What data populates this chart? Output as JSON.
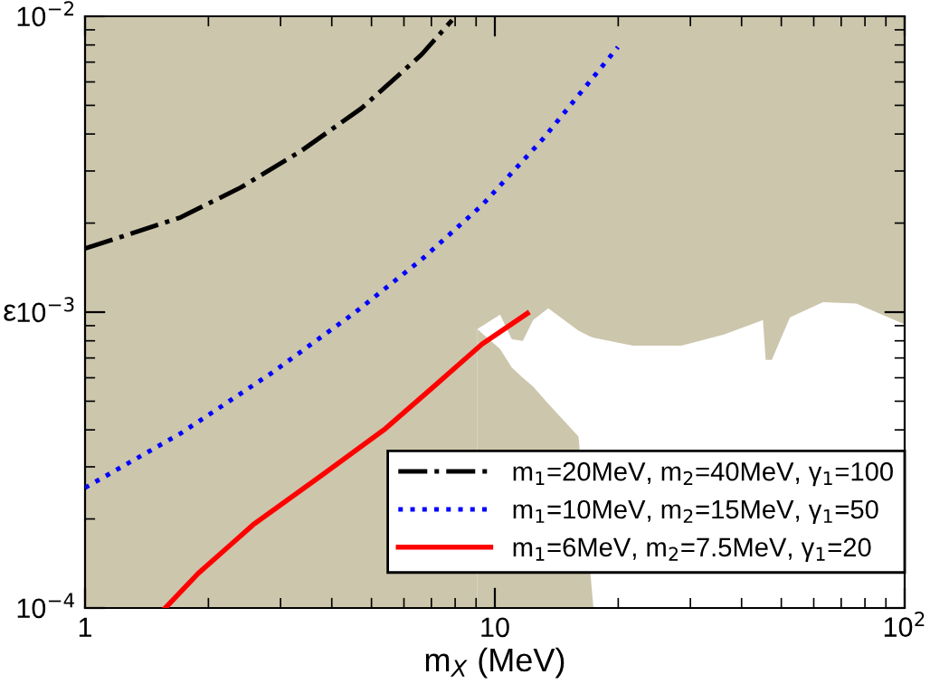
{
  "chart_data": {
    "type": "line",
    "xlabel": "m$_{X}$ (MeV)",
    "ylabel": "ε",
    "log": "xy",
    "xlim": [
      1,
      100
    ],
    "ylim": [
      0.0001,
      0.01
    ],
    "xticks": [
      1,
      10,
      {
        "value": 100,
        "label": "10$^{2}$"
      }
    ],
    "yticks": [
      {
        "value": 0.0001,
        "label": "10$^{−4}$"
      },
      {
        "value": 0.001,
        "label": "10$^{−3}$"
      },
      {
        "value": 0.01,
        "label": "10$^{−2}$"
      }
    ],
    "bands": [
      {
        "axis": "y",
        "from": 0.0001,
        "to": 0.01,
        "color": "#ccc6ac"
      }
    ],
    "grid": false,
    "legend": "bottom right",
    "marker": "none",
    "series": [
      {
        "type": "area",
        "color": "#ffffff",
        "x": [
          9.06,
          10.3,
          11.0,
          11.7,
          12.4,
          13.5,
          16.0,
          17.0,
          17.4,
          21.7,
          28.5,
          36.2,
          45.1,
          45.8,
          47.4,
          52.5,
          63.2,
          76.2,
          100
        ],
        "values": [
          0.000877,
          0.00098,
          0.00081,
          0.0008,
          0.00094,
          0.00103,
          0.000865,
          0.00083,
          0.00082,
          0.00077,
          0.00077,
          0.00084,
          0.00094,
          0.00069,
          0.00069,
          0.00096,
          0.00108,
          0.00107,
          0.00091
        ]
      },
      {
        "type": "area",
        "color": "#ccc6ac",
        "x": [
          9.06,
          10.3,
          11.0,
          11.7,
          12.4,
          13.5,
          16.0,
          17.4
        ],
        "values": [
          0.000877,
          0.00075,
          0.00065,
          0.0006,
          0.00056,
          0.00049,
          0.00038,
          0.0001
        ]
      },
      {
        "name": "m$_{1}$=20MeV, m$_{2}$=40MeV, γ$_{1}$=100",
        "color": "#000000",
        "line_style": "dashdot",
        "x": [
          1,
          1.71,
          2.4,
          3.37,
          4.72,
          6.63,
          7.86
        ],
        "values": [
          0.00164,
          0.00209,
          0.00264,
          0.00351,
          0.00488,
          0.00743,
          0.0097
        ]
      },
      {
        "name": "m$_{1}$=10MeV, m$_{2}$=15MeV, γ$_{1}$=50",
        "color": "#0000ff",
        "line_style": "dotted",
        "x": [
          1,
          1.71,
          2.84,
          4.57,
          6.64,
          9.31,
          13.1,
          19.96
        ],
        "values": [
          0.000255,
          0.000389,
          0.00062,
          0.001,
          0.00151,
          0.0023,
          0.00385,
          0.00787
        ]
      },
      {
        "name": "m$_{1}$=6MeV, m$_{2}$=7.5MeV, γ$_{1}$=20",
        "color": "#ff0000",
        "line_style": "solid",
        "x": [
          1.57,
          1.89,
          2.57,
          3.73,
          5.41,
          7.1,
          9.31,
          12.0
        ],
        "values": [
          0.0001,
          0.000131,
          0.000191,
          0.000277,
          0.000404,
          0.000561,
          0.00078,
          0.00099
        ]
      }
    ]
  }
}
